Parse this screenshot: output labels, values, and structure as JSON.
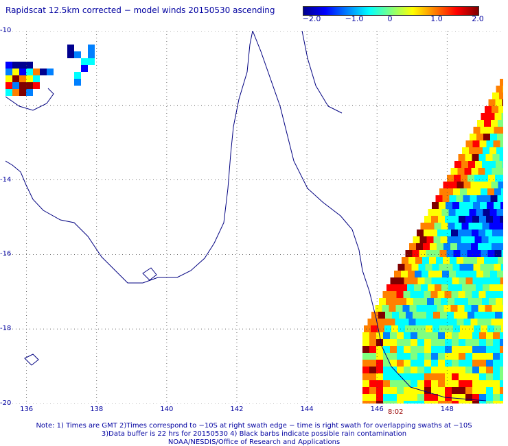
{
  "title": "Rapidscat 12.5km corrected − model winds 20150530 ascending",
  "colorbar": {
    "stops": [
      "#00008f",
      "#0000ff",
      "#0080ff",
      "#00ffff",
      "#80ff80",
      "#ffff00",
      "#ff8000",
      "#ff0000",
      "#800000"
    ],
    "ticks": [
      "−2.0",
      "−1.0",
      "0",
      "1.0",
      "2.0"
    ]
  },
  "axes": {
    "lon_labels": [
      "136",
      "138",
      "140",
      "142",
      "144",
      "146",
      "148"
    ],
    "lat_labels": [
      "-10",
      "-14",
      "-16",
      "-18",
      "-20"
    ],
    "lon_range": [
      135.4,
      149.6
    ],
    "lat_range": [
      -10,
      -20
    ]
  },
  "time_label": "8:02",
  "footer": {
    "line1": "Note: 1) Times are GMT 2)Times correspond to −10S at right swath edge − time is right swath for overlapping swaths at −10S",
    "line2": "3)Data buffer is 22 hrs for 20150530 4) Black barbs indicate possible rain contamination",
    "line3": "NOAA/NESDIS/Office of Research and Applications"
  }
}
